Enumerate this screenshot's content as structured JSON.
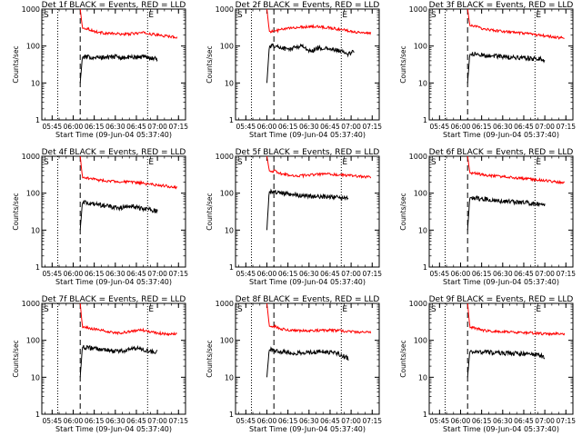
{
  "chart_data": [
    {
      "type": "line",
      "title": "Det 1f BLACK = Events, RED = LLD",
      "xlabel": "Start Time (09-Jun-04 05:37:40)",
      "ylabel": "Counts/sec",
      "yscale": "log",
      "ylim": [
        1,
        1000
      ],
      "xlim": [
        "05:37:40",
        "07:20:00"
      ],
      "xticks": [
        "05:45",
        "06:00",
        "06:15",
        "06:30",
        "06:45",
        "07:00",
        "07:15"
      ],
      "yticks": [
        "1",
        "10",
        "100",
        "1000"
      ],
      "markers": {
        "s_label": "S",
        "e_label": "E",
        "dotted_times": [
          "05:49",
          "06:53"
        ],
        "dashed_time": "06:05"
      },
      "series": [
        {
          "name": "LLD",
          "color": "#ff0000",
          "start": "06:05",
          "end": "07:14",
          "values": [
            1000,
            300,
            250,
            230,
            220,
            215,
            210,
            210,
            220,
            230,
            215,
            200,
            190,
            180,
            175
          ]
        },
        {
          "name": "Events",
          "color": "#000000",
          "start": "06:05",
          "end": "07:00",
          "values": [
            10,
            50,
            50,
            48,
            50,
            52,
            50,
            48,
            50,
            50,
            52,
            48,
            45
          ]
        }
      ]
    },
    {
      "type": "line",
      "title": "Det 2f BLACK = Events, RED = LLD",
      "xlabel": "Start Time (09-Jun-04 05:37:40)",
      "ylabel": "Counts/sec",
      "yscale": "log",
      "ylim": [
        1,
        1000
      ],
      "xlim": [
        "05:37:40",
        "07:20:00"
      ],
      "xticks": [
        "05:45",
        "06:00",
        "06:15",
        "06:30",
        "06:45",
        "07:00",
        "07:15"
      ],
      "yticks": [
        "1",
        "10",
        "100",
        "1000"
      ],
      "markers": {
        "s_label": "S",
        "e_label": "E",
        "dotted_times": [
          "05:49",
          "06:53"
        ],
        "dashed_time": "06:05"
      },
      "series": [
        {
          "name": "LLD",
          "color": "#ff0000",
          "start": "06:00",
          "end": "07:14",
          "values": [
            1000,
            250,
            280,
            300,
            320,
            330,
            340,
            330,
            320,
            300,
            280,
            260,
            240,
            230,
            220
          ]
        },
        {
          "name": "Events",
          "color": "#000000",
          "start": "06:00",
          "end": "07:02",
          "values": [
            10,
            100,
            90,
            80,
            95,
            100,
            70,
            90,
            85,
            80,
            75,
            60,
            70
          ]
        }
      ]
    },
    {
      "type": "line",
      "title": "Det 3f BLACK = Events, RED = LLD",
      "xlabel": "Start Time (09-Jun-04 05:37:40)",
      "ylabel": "Counts/sec",
      "yscale": "log",
      "ylim": [
        1,
        1000
      ],
      "xlim": [
        "05:37:40",
        "07:20:00"
      ],
      "xticks": [
        "05:45",
        "06:00",
        "06:15",
        "06:30",
        "06:45",
        "07:00",
        "07:15"
      ],
      "yticks": [
        "1",
        "10",
        "100",
        "1000"
      ],
      "markers": {
        "s_label": "S",
        "e_label": "E",
        "dotted_times": [
          "05:49",
          "06:53"
        ],
        "dashed_time": "06:05"
      },
      "series": [
        {
          "name": "LLD",
          "color": "#ff0000",
          "start": "06:05",
          "end": "07:14",
          "values": [
            1000,
            350,
            300,
            280,
            260,
            250,
            240,
            230,
            220,
            210,
            200,
            190,
            180,
            170,
            165
          ]
        },
        {
          "name": "Events",
          "color": "#000000",
          "start": "06:05",
          "end": "07:00",
          "values": [
            10,
            60,
            58,
            55,
            55,
            52,
            50,
            50,
            48,
            48,
            45,
            45,
            42
          ]
        }
      ]
    },
    {
      "type": "line",
      "title": "Det 4f BLACK = Events, RED = LLD",
      "xlabel": "Start Time (09-Jun-04 05:37:40)",
      "ylabel": "Counts/sec",
      "yscale": "log",
      "ylim": [
        1,
        1000
      ],
      "xlim": [
        "05:37:40",
        "07:20:00"
      ],
      "xticks": [
        "05:45",
        "06:00",
        "06:15",
        "06:30",
        "06:45",
        "07:00",
        "07:15"
      ],
      "yticks": [
        "1",
        "10",
        "100",
        "1000"
      ],
      "markers": {
        "s_label": "S",
        "e_label": "E",
        "dotted_times": [
          "05:49",
          "06:53"
        ],
        "dashed_time": "06:05"
      },
      "series": [
        {
          "name": "LLD",
          "color": "#ff0000",
          "start": "06:05",
          "end": "07:14",
          "values": [
            1000,
            260,
            240,
            220,
            215,
            210,
            205,
            200,
            195,
            185,
            175,
            165,
            160,
            150,
            145
          ]
        },
        {
          "name": "Events",
          "color": "#000000",
          "start": "06:05",
          "end": "07:00",
          "values": [
            10,
            55,
            50,
            48,
            45,
            42,
            40,
            42,
            45,
            40,
            38,
            35,
            32
          ]
        }
      ]
    },
    {
      "type": "line",
      "title": "Det 5f BLACK = Events, RED = LLD",
      "xlabel": "Start Time (09-Jun-04 05:37:40)",
      "ylabel": "Counts/sec",
      "yscale": "log",
      "ylim": [
        1,
        1000
      ],
      "xlim": [
        "05:37:40",
        "07:20:00"
      ],
      "xticks": [
        "05:45",
        "06:00",
        "06:15",
        "06:30",
        "06:45",
        "07:00",
        "07:15"
      ],
      "yticks": [
        "1",
        "10",
        "100",
        "1000"
      ],
      "markers": {
        "s_label": "S",
        "e_label": "E",
        "dotted_times": [
          "05:49",
          "06:53"
        ],
        "dashed_time": "06:05"
      },
      "series": [
        {
          "name": "LLD",
          "color": "#ff0000",
          "start": "06:00",
          "end": "07:14",
          "values": [
            1000,
            400,
            330,
            310,
            300,
            300,
            310,
            320,
            330,
            320,
            310,
            300,
            290,
            280,
            270
          ]
        },
        {
          "name": "Events",
          "color": "#000000",
          "start": "06:00",
          "end": "06:58",
          "values": [
            10,
            110,
            100,
            95,
            90,
            85,
            82,
            80,
            80,
            82,
            78,
            75,
            70
          ]
        }
      ]
    },
    {
      "type": "line",
      "title": "Det 6f BLACK = Events, RED = LLD",
      "xlabel": "Start Time (09-Jun-04 05:37:40)",
      "ylabel": "Counts/sec",
      "yscale": "log",
      "ylim": [
        1,
        1000
      ],
      "xlim": [
        "05:37:40",
        "07:20:00"
      ],
      "xticks": [
        "05:45",
        "06:00",
        "06:15",
        "06:30",
        "06:45",
        "07:00",
        "07:15"
      ],
      "yticks": [
        "1",
        "10",
        "100",
        "1000"
      ],
      "markers": {
        "s_label": "S",
        "e_label": "E",
        "dotted_times": [
          "05:49",
          "06:53"
        ],
        "dashed_time": "06:05"
      },
      "series": [
        {
          "name": "LLD",
          "color": "#ff0000",
          "start": "06:05",
          "end": "07:14",
          "values": [
            1000,
            350,
            320,
            300,
            290,
            280,
            270,
            260,
            250,
            240,
            230,
            220,
            210,
            200,
            195
          ]
        },
        {
          "name": "Events",
          "color": "#000000",
          "start": "06:05",
          "end": "07:00",
          "values": [
            10,
            75,
            70,
            68,
            65,
            62,
            60,
            58,
            55,
            55,
            52,
            50,
            48
          ]
        }
      ]
    },
    {
      "type": "line",
      "title": "Det 7f BLACK = Events, RED = LLD",
      "xlabel": "Start Time (09-Jun-04 05:37:40)",
      "ylabel": "Counts/sec",
      "yscale": "log",
      "ylim": [
        1,
        1000
      ],
      "xlim": [
        "05:37:40",
        "07:20:00"
      ],
      "xticks": [
        "05:45",
        "06:00",
        "06:15",
        "06:30",
        "06:45",
        "07:00",
        "07:15"
      ],
      "yticks": [
        "1",
        "10",
        "100",
        "1000"
      ],
      "markers": {
        "s_label": "S",
        "e_label": "E",
        "dotted_times": [
          "05:49",
          "06:53"
        ],
        "dashed_time": "06:05"
      },
      "series": [
        {
          "name": "LLD",
          "color": "#ff0000",
          "start": "06:05",
          "end": "07:14",
          "values": [
            1000,
            220,
            200,
            190,
            170,
            160,
            160,
            170,
            180,
            190,
            170,
            160,
            150,
            150,
            145
          ]
        },
        {
          "name": "Events",
          "color": "#000000",
          "start": "06:05",
          "end": "07:00",
          "values": [
            10,
            65,
            60,
            58,
            55,
            52,
            50,
            52,
            60,
            62,
            55,
            50,
            48
          ]
        }
      ]
    },
    {
      "type": "line",
      "title": "Det 8f BLACK = Events, RED = LLD",
      "xlabel": "Start Time (09-Jun-04 05:37:40)",
      "ylabel": "Counts/sec",
      "yscale": "log",
      "ylim": [
        1,
        1000
      ],
      "xlim": [
        "05:37:40",
        "07:20:00"
      ],
      "xticks": [
        "05:45",
        "06:00",
        "06:15",
        "06:30",
        "06:45",
        "07:00",
        "07:15"
      ],
      "yticks": [
        "1",
        "10",
        "100",
        "1000"
      ],
      "markers": {
        "s_label": "S",
        "e_label": "E",
        "dotted_times": [
          "05:49",
          "06:53"
        ],
        "dashed_time": "06:05"
      },
      "series": [
        {
          "name": "LLD",
          "color": "#ff0000",
          "start": "06:00",
          "end": "07:14",
          "values": [
            1000,
            240,
            200,
            190,
            185,
            180,
            180,
            185,
            190,
            185,
            180,
            175,
            170,
            165,
            160
          ]
        },
        {
          "name": "Events",
          "color": "#000000",
          "start": "06:00",
          "end": "06:58",
          "values": [
            10,
            55,
            50,
            48,
            46,
            45,
            46,
            48,
            50,
            48,
            45,
            40,
            32
          ]
        }
      ]
    },
    {
      "type": "line",
      "title": "Det 9f BLACK = Events, RED = LLD",
      "xlabel": "Start Time (09-Jun-04 05:37:40)",
      "ylabel": "Counts/sec",
      "yscale": "log",
      "ylim": [
        1,
        1000
      ],
      "xlim": [
        "05:37:40",
        "07:20:00"
      ],
      "xticks": [
        "05:45",
        "06:00",
        "06:15",
        "06:30",
        "06:45",
        "07:00",
        "07:15"
      ],
      "yticks": [
        "1",
        "10",
        "100",
        "1000"
      ],
      "markers": {
        "s_label": "S",
        "e_label": "E",
        "dotted_times": [
          "05:49",
          "06:53"
        ],
        "dashed_time": "06:05"
      },
      "series": [
        {
          "name": "LLD",
          "color": "#ff0000",
          "start": "06:05",
          "end": "07:14",
          "values": [
            1000,
            220,
            190,
            180,
            175,
            170,
            170,
            165,
            160,
            160,
            155,
            150,
            150,
            150,
            150
          ]
        },
        {
          "name": "Events",
          "color": "#000000",
          "start": "06:05",
          "end": "07:00",
          "values": [
            10,
            50,
            48,
            48,
            46,
            45,
            45,
            44,
            44,
            42,
            42,
            40,
            35
          ]
        }
      ]
    }
  ]
}
